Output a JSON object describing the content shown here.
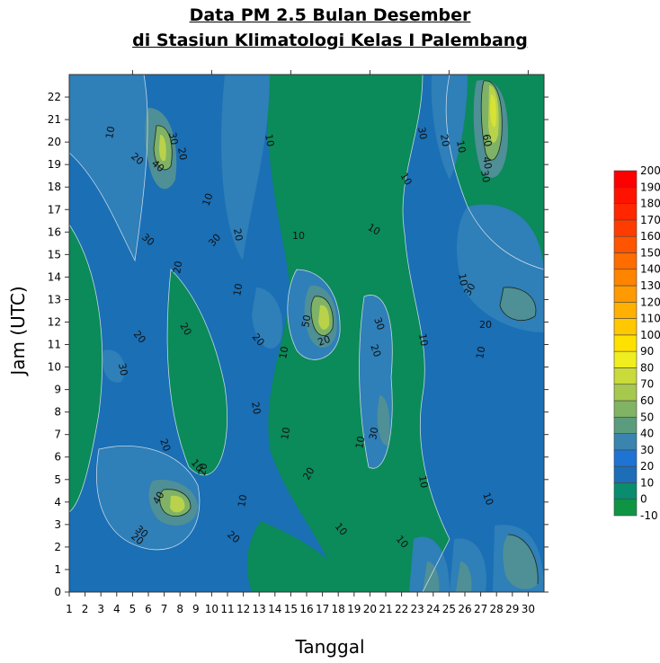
{
  "title_line1": "Data PM 2.5 Bulan Desember",
  "title_line2": "di Stasiun Klimatologi Kelas I Palembang",
  "chart_data": {
    "type": "heatmap",
    "subtype": "filled-contour",
    "xlabel": "Tanggal",
    "ylabel": "Jam (UTC)",
    "x_ticks": [
      1,
      2,
      3,
      4,
      5,
      6,
      7,
      8,
      9,
      10,
      11,
      12,
      13,
      14,
      15,
      16,
      17,
      18,
      19,
      20,
      21,
      22,
      23,
      24,
      25,
      26,
      27,
      28,
      29,
      30
    ],
    "y_ticks": [
      0,
      1,
      2,
      3,
      4,
      5,
      6,
      7,
      8,
      9,
      10,
      11,
      12,
      13,
      14,
      15,
      16,
      17,
      18,
      19,
      20,
      21,
      22
    ],
    "xlim": [
      1,
      31
    ],
    "ylim": [
      0,
      23
    ],
    "colorbar_levels": [
      -10,
      0,
      10,
      20,
      30,
      40,
      50,
      60,
      70,
      80,
      90,
      100,
      110,
      120,
      130,
      140,
      150,
      160,
      170,
      180,
      190,
      200
    ],
    "colorbar_labels": [
      "-10",
      "0",
      "10",
      "20",
      "30",
      "40",
      "50",
      "60",
      "70",
      "80",
      "90",
      "100",
      "110",
      "120",
      "130",
      "140",
      "150",
      "160",
      "170",
      "180",
      "190",
      "200"
    ],
    "colorbar_colors": [
      "#0f9444",
      "#0a8c6e",
      "#1d6db8",
      "#1f73d3",
      "#3a84ad",
      "#5b9c7e",
      "#80b464",
      "#a6c84e",
      "#c9da3a",
      "#f0ee1e",
      "#ffe100",
      "#ffc800",
      "#ffb000",
      "#ff9a00",
      "#ff8400",
      "#ff6c00",
      "#ff5400",
      "#ff3c00",
      "#ff2600",
      "#ff1200",
      "#ff0000"
    ],
    "contour_labels": [
      "10",
      "20",
      "30",
      "40",
      "50",
      "60"
    ],
    "peaks": [
      {
        "x": 28,
        "y": 21,
        "value": 65
      },
      {
        "x": 7,
        "y": 20,
        "value": 45
      },
      {
        "x": 8,
        "y": 4,
        "value": 55
      },
      {
        "x": 17,
        "y": 12.5,
        "value": 55
      },
      {
        "x": 4,
        "y": 10,
        "value": 42
      },
      {
        "x": 29,
        "y": 13,
        "value": 38
      },
      {
        "x": 30,
        "y": 1,
        "value": 35
      }
    ]
  }
}
